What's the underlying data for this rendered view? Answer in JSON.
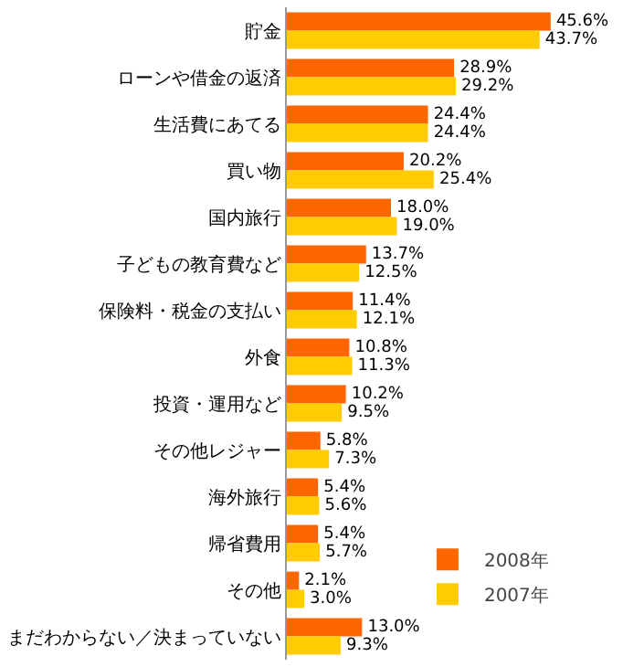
{
  "chart_data": {
    "type": "bar",
    "orientation": "horizontal",
    "categories": [
      "貯金",
      "ローンや借金の返済",
      "生活費にあてる",
      "買い物",
      "国内旅行",
      "子どもの教育費など",
      "保険料・税金の支払い",
      "外食",
      "投資・運用など",
      "その他レジャー",
      "海外旅行",
      "帰省費用",
      "その他",
      "まだわからない／決まっていない"
    ],
    "series": [
      {
        "name": "2008年",
        "color": "#ff6600",
        "values": [
          45.6,
          28.9,
          24.4,
          20.2,
          18.0,
          13.7,
          11.4,
          10.8,
          10.2,
          5.8,
          5.4,
          5.4,
          2.1,
          13.0
        ],
        "value_labels": [
          "45.6%",
          "28.9%",
          "24.4%",
          "20.2%",
          "18.0%",
          "13.7%",
          "11.4%",
          "10.8%",
          "10.2%",
          "5.8%",
          "5.4%",
          "5.4%",
          "2.1%",
          "13.0%"
        ]
      },
      {
        "name": "2007年",
        "color": "#ffcc00",
        "values": [
          43.7,
          29.2,
          24.4,
          25.4,
          19.0,
          12.5,
          12.1,
          11.3,
          9.5,
          7.3,
          5.6,
          5.7,
          3.0,
          9.3
        ],
        "value_labels": [
          "43.7%",
          "29.2%",
          "24.4%",
          "25.4%",
          "19.0%",
          "12.5%",
          "12.1%",
          "11.3%",
          "9.5%",
          "7.3%",
          "5.6%",
          "5.7%",
          "3.0%",
          "9.3%"
        ]
      }
    ],
    "tick_labels": "y",
    "grid": false,
    "legend": "bottom right"
  }
}
